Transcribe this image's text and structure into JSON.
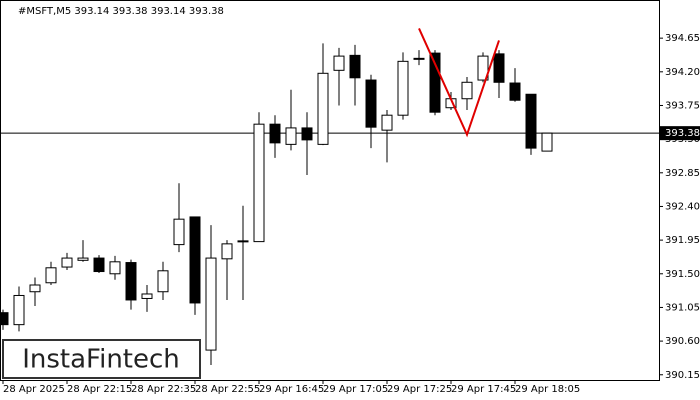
{
  "chart_data": {
    "type": "candlestick",
    "title": "#MSFT,M5  393.14 393.38 393.14 393.38",
    "categories": [
      "28 Apr 2025",
      null,
      null,
      null,
      "28 Apr 22:15",
      null,
      null,
      null,
      "28 Apr 22:35",
      null,
      null,
      null,
      "28 Apr 22:55",
      null,
      null,
      null,
      "29 Apr 16:45",
      null,
      null,
      null,
      "29 Apr 17:05",
      null,
      null,
      null,
      "29 Apr 17:25",
      null,
      null,
      null,
      "29 Apr 17:45",
      null,
      null,
      null,
      "29 Apr 18:05",
      null,
      null
    ],
    "open": [
      390.98,
      390.82,
      391.26,
      391.38,
      391.59,
      391.68,
      391.71,
      391.5,
      391.65,
      391.17,
      391.26,
      391.89,
      392.26,
      390.48,
      391.7,
      391.94,
      391.93,
      393.5,
      393.23,
      393.45,
      393.23,
      394.22,
      394.42,
      394.09,
      393.42,
      393.62,
      394.38,
      394.45,
      393.72,
      393.84,
      394.09,
      394.44,
      394.05,
      393.9,
      393.14
    ],
    "high": [
      391.02,
      391.33,
      391.45,
      391.66,
      391.78,
      391.95,
      391.75,
      391.74,
      391.69,
      391.35,
      391.66,
      392.71,
      392.26,
      392.15,
      391.95,
      392.41,
      393.66,
      393.62,
      393.96,
      393.66,
      394.58,
      394.52,
      394.56,
      394.16,
      393.69,
      394.46,
      394.49,
      394.49,
      393.93,
      394.13,
      394.46,
      394.49,
      394.25,
      393.9,
      393.38
    ],
    "low": [
      390.75,
      390.73,
      391.07,
      391.35,
      391.55,
      391.66,
      391.51,
      391.42,
      391.02,
      390.99,
      391.15,
      391.79,
      390.95,
      390.28,
      391.15,
      391.15,
      391.93,
      393.05,
      393.15,
      392.82,
      393.22,
      393.75,
      393.75,
      393.18,
      392.99,
      393.56,
      394.29,
      393.62,
      393.69,
      393.69,
      394.06,
      393.85,
      393.8,
      393.09,
      393.14
    ],
    "close": [
      390.82,
      391.21,
      391.35,
      391.58,
      391.71,
      391.71,
      391.53,
      391.66,
      391.15,
      391.23,
      391.54,
      392.23,
      391.11,
      391.71,
      391.9,
      391.94,
      393.5,
      393.25,
      393.45,
      393.29,
      394.18,
      394.41,
      394.12,
      393.46,
      393.62,
      394.34,
      394.38,
      393.66,
      393.84,
      394.06,
      394.41,
      394.06,
      393.82,
      393.18,
      393.38
    ],
    "up_color": "#ffffff",
    "down_color": "#000000",
    "ylim": [
      390.08,
      395.16
    ],
    "yticks": [
      394.65,
      {
        "value": 394.2,
        "label": "394.20"
      },
      393.75,
      {
        "value": 393.3,
        "label": "393.30"
      },
      392.85,
      {
        "value": 392.4,
        "label": "392.40"
      },
      391.95,
      {
        "value": 391.5,
        "label": "391.50"
      },
      391.05,
      {
        "value": 390.6,
        "label": "390.60"
      },
      390.15
    ],
    "current_price": 393.38,
    "pattern": {
      "color": "#e00000",
      "x_index": [
        26,
        29,
        31
      ],
      "values": [
        394.78,
        393.36,
        394.62
      ]
    },
    "watermark": "InstaFintech"
  }
}
